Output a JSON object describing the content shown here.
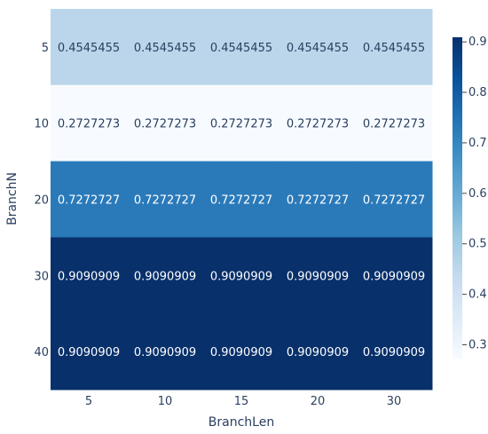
{
  "chart_data": {
    "type": "heatmap",
    "xlabel": "BranchLen",
    "ylabel": "BranchN",
    "x_categories": [
      "5",
      "10",
      "15",
      "20",
      "30"
    ],
    "y_categories": [
      "5",
      "10",
      "20",
      "30",
      "40"
    ],
    "z": [
      [
        "0.4545455",
        "0.4545455",
        "0.4545455",
        "0.4545455",
        "0.4545455"
      ],
      [
        "0.2727273",
        "0.2727273",
        "0.2727273",
        "0.2727273",
        "0.2727273"
      ],
      [
        "0.7272727",
        "0.7272727",
        "0.7272727",
        "0.7272727",
        "0.7272727"
      ],
      [
        "0.9090909",
        "0.9090909",
        "0.9090909",
        "0.9090909",
        "0.9090909"
      ],
      [
        "0.9090909",
        "0.9090909",
        "0.9090909",
        "0.9090909",
        "0.9090909"
      ]
    ],
    "colorscale": "Blues",
    "zmin": 0.2727273,
    "zmax": 0.9090909,
    "colorbar_ticks": [
      "0.9",
      "0.8",
      "0.7",
      "0.6",
      "0.5",
      "0.4",
      "0.3"
    ],
    "colorscale_stops": [
      "#f7fbff",
      "#deebf7",
      "#c6dbef",
      "#9ecae1",
      "#6baed6",
      "#4292c6",
      "#2171b5",
      "#08519c",
      "#08306b"
    ]
  }
}
